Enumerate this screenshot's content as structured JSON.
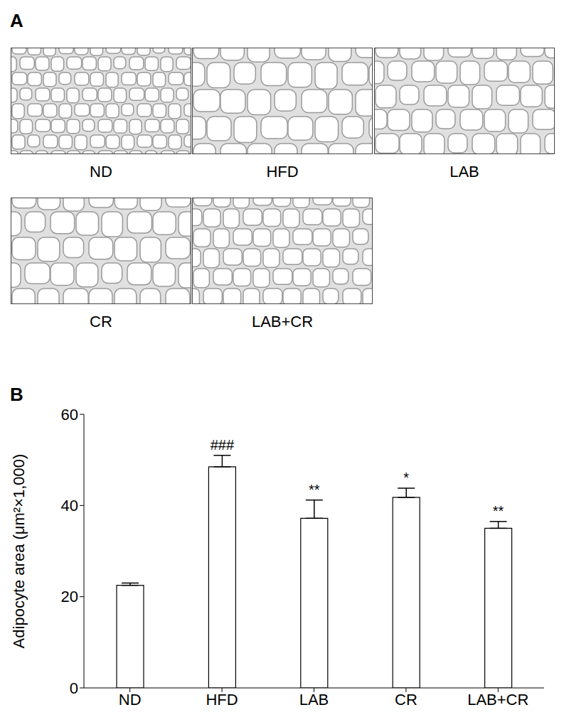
{
  "panel_a": {
    "label": "A",
    "images": [
      "ND",
      "HFD",
      "LAB",
      "CR",
      "LAB+CR"
    ]
  },
  "panel_b": {
    "label": "B"
  },
  "chart_data": {
    "type": "bar",
    "categories": [
      "ND",
      "HFD",
      "LAB",
      "CR",
      "LAB+CR"
    ],
    "values": [
      22.5,
      48.5,
      37.2,
      41.8,
      35.0
    ],
    "errors": [
      0.5,
      2.5,
      4.0,
      2.0,
      1.5
    ],
    "annotations": [
      null,
      "###",
      "**",
      "*",
      "**"
    ],
    "y_label": "Adipocyte area (μm²×1,000)",
    "color": "#ffffff",
    "ylim": [
      0,
      60
    ],
    "yticks": [
      0,
      20,
      40,
      60
    ],
    "grid": false
  }
}
